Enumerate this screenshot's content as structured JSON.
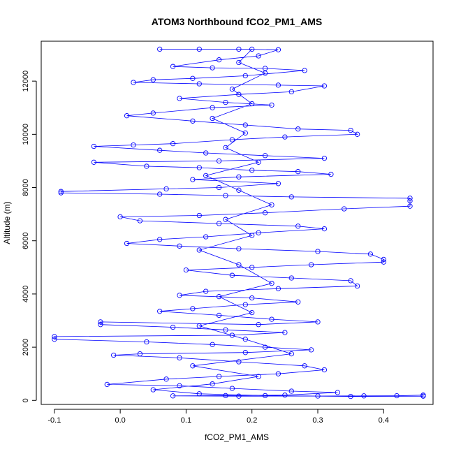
{
  "chart_data": {
    "type": "scatter",
    "title": "ATOM3 Northbound fCO2_PM1_AMS",
    "xlabel": "fCO2_PM1_AMS",
    "ylabel": "Altitude (m)",
    "xlim": [
      -0.12,
      0.475
    ],
    "ylim": [
      -150,
      13500
    ],
    "xticks": [
      -0.1,
      0.0,
      0.1,
      0.2,
      0.3,
      0.4
    ],
    "xtick_labels": [
      "-0.1",
      "0.0",
      "0.1",
      "0.2",
      "0.3",
      "0.4"
    ],
    "yticks": [
      0,
      2000,
      4000,
      6000,
      8000,
      10000,
      12000
    ],
    "ytick_labels": [
      "0",
      "2000",
      "4000",
      "6000",
      "8000",
      "10000",
      "12000"
    ],
    "marker": "open-circle",
    "connected": true,
    "color": "#0000ff",
    "grid": false,
    "series": [
      {
        "points": [
          [
            0.06,
            13200
          ],
          [
            0.12,
            13200
          ],
          [
            0.18,
            13200
          ],
          [
            0.24,
            13180
          ],
          [
            0.21,
            12950
          ],
          [
            0.15,
            12800
          ],
          [
            0.08,
            12550
          ],
          [
            0.14,
            12500
          ],
          [
            0.22,
            12480
          ],
          [
            0.28,
            12400
          ],
          [
            0.19,
            12200
          ],
          [
            0.11,
            12100
          ],
          [
            0.05,
            12050
          ],
          [
            0.02,
            11950
          ],
          [
            0.12,
            11900
          ],
          [
            0.24,
            11850
          ],
          [
            0.31,
            11820
          ],
          [
            0.26,
            11600
          ],
          [
            0.18,
            11500
          ],
          [
            0.09,
            11350
          ],
          [
            0.16,
            11200
          ],
          [
            0.23,
            11100
          ],
          [
            0.14,
            11000
          ],
          [
            0.05,
            10800
          ],
          [
            0.01,
            10700
          ],
          [
            0.11,
            10500
          ],
          [
            0.19,
            10350
          ],
          [
            0.27,
            10200
          ],
          [
            0.35,
            10150
          ],
          [
            0.36,
            10000
          ],
          [
            0.25,
            9900
          ],
          [
            0.17,
            9800
          ],
          [
            0.08,
            9650
          ],
          [
            0.02,
            9600
          ],
          [
            -0.04,
            9550
          ],
          [
            0.06,
            9400
          ],
          [
            0.13,
            9300
          ],
          [
            0.22,
            9200
          ],
          [
            0.31,
            9100
          ],
          [
            0.15,
            9000
          ],
          [
            -0.04,
            8950
          ],
          [
            0.04,
            8800
          ],
          [
            0.12,
            8750
          ],
          [
            0.2,
            8650
          ],
          [
            0.27,
            8600
          ],
          [
            0.32,
            8500
          ],
          [
            0.18,
            8400
          ],
          [
            0.11,
            8300
          ],
          [
            0.24,
            8150
          ],
          [
            0.15,
            8000
          ],
          [
            0.07,
            7950
          ],
          [
            -0.09,
            7850
          ],
          [
            -0.09,
            7800
          ],
          [
            0.06,
            7750
          ],
          [
            0.16,
            7700
          ],
          [
            0.26,
            7650
          ],
          [
            0.44,
            7600
          ],
          [
            0.44,
            7500
          ],
          [
            0.44,
            7300
          ],
          [
            0.34,
            7200
          ],
          [
            0.22,
            7050
          ],
          [
            0.12,
            6950
          ],
          [
            0.0,
            6900
          ],
          [
            0.03,
            6750
          ],
          [
            0.15,
            6650
          ],
          [
            0.27,
            6550
          ],
          [
            0.31,
            6450
          ],
          [
            0.21,
            6300
          ],
          [
            0.13,
            6150
          ],
          [
            0.06,
            6050
          ],
          [
            0.01,
            5900
          ],
          [
            0.09,
            5800
          ],
          [
            0.18,
            5700
          ],
          [
            0.3,
            5600
          ],
          [
            0.38,
            5500
          ],
          [
            0.4,
            5300
          ],
          [
            0.4,
            5200
          ],
          [
            0.29,
            5100
          ],
          [
            0.2,
            5000
          ],
          [
            0.1,
            4900
          ],
          [
            0.17,
            4700
          ],
          [
            0.26,
            4600
          ],
          [
            0.35,
            4500
          ],
          [
            0.36,
            4300
          ],
          [
            0.24,
            4200
          ],
          [
            0.13,
            4100
          ],
          [
            0.09,
            3950
          ],
          [
            0.2,
            3850
          ],
          [
            0.27,
            3700
          ],
          [
            0.19,
            3600
          ],
          [
            0.11,
            3450
          ],
          [
            0.06,
            3350
          ],
          [
            0.15,
            3200
          ],
          [
            0.23,
            3050
          ],
          [
            0.3,
            2950
          ],
          [
            0.21,
            2850
          ],
          [
            -0.03,
            2950
          ],
          [
            -0.03,
            2850
          ],
          [
            0.08,
            2750
          ],
          [
            0.16,
            2650
          ],
          [
            0.25,
            2550
          ],
          [
            0.17,
            2450
          ],
          [
            -0.1,
            2400
          ],
          [
            -0.1,
            2300
          ],
          [
            0.04,
            2200
          ],
          [
            0.14,
            2100
          ],
          [
            0.22,
            2000
          ],
          [
            0.29,
            1900
          ],
          [
            0.19,
            1800
          ],
          [
            0.03,
            1750
          ],
          [
            -0.01,
            1700
          ],
          [
            0.09,
            1600
          ],
          [
            0.18,
            1450
          ],
          [
            0.28,
            1300
          ],
          [
            0.31,
            1150
          ],
          [
            0.24,
            1000
          ],
          [
            0.15,
            900
          ],
          [
            0.07,
            800
          ],
          [
            -0.02,
            600
          ],
          [
            0.09,
            550
          ],
          [
            0.17,
            450
          ],
          [
            0.26,
            350
          ],
          [
            0.33,
            300
          ],
          [
            0.25,
            200
          ],
          [
            0.16,
            180
          ],
          [
            0.08,
            170
          ],
          [
            0.18,
            160
          ],
          [
            0.3,
            165
          ],
          [
            0.37,
            170
          ],
          [
            0.42,
            175
          ],
          [
            0.46,
            200
          ],
          [
            0.46,
            160
          ],
          [
            0.35,
            150
          ],
          [
            0.22,
            180
          ],
          [
            0.12,
            250
          ],
          [
            0.05,
            400
          ],
          [
            0.14,
            620
          ],
          [
            0.21,
            900
          ],
          [
            0.11,
            1300
          ],
          [
            0.26,
            1750
          ],
          [
            0.19,
            2300
          ],
          [
            0.12,
            2800
          ],
          [
            0.2,
            3300
          ],
          [
            0.15,
            3900
          ],
          [
            0.23,
            4400
          ],
          [
            0.18,
            5100
          ],
          [
            0.12,
            5650
          ],
          [
            0.2,
            6200
          ],
          [
            0.16,
            6800
          ],
          [
            0.23,
            7350
          ],
          [
            0.18,
            7900
          ],
          [
            0.13,
            8450
          ],
          [
            0.21,
            8950
          ],
          [
            0.16,
            9500
          ],
          [
            0.19,
            10050
          ],
          [
            0.14,
            10600
          ],
          [
            0.2,
            11150
          ],
          [
            0.17,
            11700
          ],
          [
            0.22,
            12300
          ],
          [
            0.18,
            12700
          ],
          [
            0.2,
            13200
          ]
        ]
      }
    ]
  }
}
